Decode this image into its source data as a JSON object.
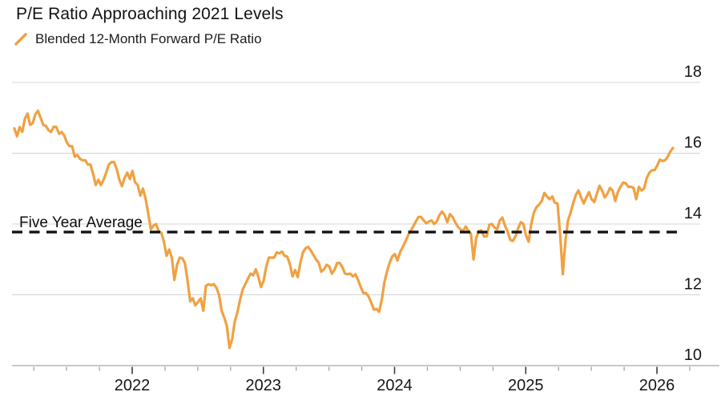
{
  "header": {
    "title": "P/E Ratio Approaching 2021 Levels"
  },
  "colors": {
    "series_orange": "#F0A142",
    "grid": "#d4d4d4",
    "axis": "#c8c8c8",
    "tick_major": "#3c3c3c",
    "tick_minor": "#9b9b9b",
    "average_line": "#131313",
    "text": "#161616"
  },
  "chart_data": {
    "type": "line",
    "title": "P/E Ratio Approaching 2021 Levels",
    "legend_position": "top-left",
    "grid": "horizontal",
    "y_axis_side": "right",
    "xlim": [
      2021.084,
      2026.476
    ],
    "ylim": [
      10,
      18
    ],
    "y_ticks": [
      10,
      12,
      14,
      16,
      18
    ],
    "x_ticks_major": [
      2022,
      2023,
      2024,
      2025,
      2026
    ],
    "x_tick_labels": [
      "2022",
      "2023",
      "2024",
      "2025",
      "2026"
    ],
    "x_minor_step": 0.25,
    "average_line": {
      "label": "Five Year Average",
      "value": 13.75,
      "style": "dashed"
    },
    "series": {
      "name": "Blended 12-Month Forward P/E Ratio",
      "color": "#F0A142",
      "x_start": 2021.102,
      "x_step": 0.02,
      "values": [
        16.7,
        16.48,
        16.74,
        16.6,
        16.97,
        17.12,
        16.8,
        16.85,
        17.1,
        17.2,
        17.0,
        16.8,
        16.77,
        16.65,
        16.6,
        16.75,
        16.74,
        16.55,
        16.6,
        16.5,
        16.3,
        16.2,
        16.2,
        15.9,
        15.95,
        15.84,
        15.8,
        15.8,
        15.68,
        15.68,
        15.42,
        15.1,
        15.25,
        15.1,
        15.25,
        15.45,
        15.68,
        15.75,
        15.75,
        15.55,
        15.25,
        15.07,
        15.3,
        15.45,
        15.27,
        15.5,
        15.18,
        15.1,
        14.8,
        15.0,
        14.72,
        14.3,
        13.85,
        13.95,
        14.0,
        13.8,
        13.75,
        13.5,
        13.1,
        13.28,
        13.05,
        12.42,
        12.85,
        13.05,
        13.03,
        12.9,
        12.4,
        11.82,
        11.9,
        11.7,
        11.8,
        11.9,
        11.55,
        12.25,
        12.3,
        12.27,
        12.3,
        12.2,
        12.0,
        11.55,
        11.35,
        11.12,
        10.5,
        10.75,
        11.25,
        11.5,
        11.85,
        12.15,
        12.3,
        12.45,
        12.6,
        12.55,
        12.72,
        12.5,
        12.22,
        12.4,
        12.8,
        13.05,
        13.05,
        13.05,
        13.2,
        13.17,
        13.22,
        13.1,
        13.08,
        12.87,
        12.52,
        12.7,
        12.5,
        12.9,
        13.2,
        13.32,
        13.35,
        13.25,
        13.12,
        13.0,
        12.9,
        12.65,
        12.72,
        12.85,
        12.8,
        12.6,
        12.7,
        12.9,
        12.9,
        12.78,
        12.6,
        12.58,
        12.6,
        12.52,
        12.58,
        12.42,
        12.22,
        12.05,
        12.05,
        11.95,
        11.78,
        11.58,
        11.6,
        11.52,
        11.85,
        12.35,
        12.65,
        12.9,
        13.08,
        13.15,
        12.97,
        13.2,
        13.35,
        13.5,
        13.67,
        13.8,
        13.93,
        14.07,
        14.2,
        14.2,
        14.1,
        14.02,
        14.07,
        14.1,
        14.0,
        14.07,
        14.25,
        14.35,
        14.25,
        14.05,
        14.28,
        14.2,
        14.05,
        13.92,
        13.85,
        13.8,
        13.93,
        13.8,
        13.73,
        13.0,
        13.6,
        13.8,
        13.82,
        13.65,
        13.65,
        13.98,
        14.0,
        13.9,
        13.85,
        14.1,
        14.18,
        13.95,
        13.78,
        13.55,
        13.52,
        13.65,
        13.88,
        14.05,
        14.0,
        13.68,
        13.5,
        14.0,
        14.32,
        14.48,
        14.55,
        14.65,
        14.88,
        14.78,
        14.7,
        14.78,
        14.6,
        14.58,
        13.7,
        12.58,
        13.5,
        14.1,
        14.32,
        14.6,
        14.82,
        14.95,
        14.75,
        14.58,
        14.75,
        14.9,
        14.7,
        14.62,
        14.85,
        15.08,
        14.95,
        14.75,
        14.85,
        15.02,
        14.95,
        14.65,
        14.9,
        15.05,
        15.17,
        15.15,
        15.05,
        15.05,
        15.02,
        14.7,
        15.05,
        14.95,
        15.0,
        15.3,
        15.45,
        15.52,
        15.52,
        15.65,
        15.82,
        15.78,
        15.8,
        15.9,
        16.05,
        16.15
      ]
    }
  }
}
